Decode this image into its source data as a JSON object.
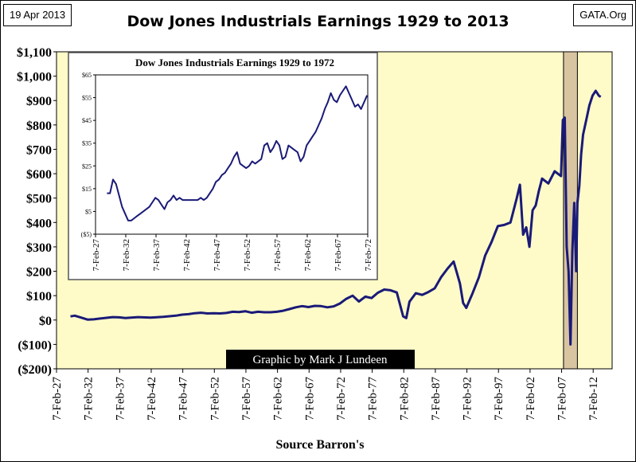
{
  "header": {
    "date": "19 Apr 2013",
    "title": "Dow Jones Industrials Earnings 1929 to 2013",
    "site": "GATA.Org"
  },
  "credit": "Graphic by Mark J Lundeen",
  "colors": {
    "plot_background": "#FFFBC8",
    "series_line": "#1A1A78",
    "recession_band": "#D9C4A2"
  },
  "chart_data": [
    {
      "type": "line",
      "title": "Dow Jones Industrials Earnings 1929 to 2013",
      "xlabel": "Source Barron's",
      "ylabel": "",
      "xlim": [
        1927.1,
        2015.1
      ],
      "ylim": [
        -200,
        1100
      ],
      "grid": false,
      "y_ticks": [
        1100,
        1000,
        900,
        800,
        700,
        600,
        500,
        400,
        300,
        200,
        100,
        0,
        -100,
        -200
      ],
      "y_tick_labels": [
        "$1,100",
        "$1,000",
        "$900",
        "$800",
        "$700",
        "$600",
        "$500",
        "$400",
        "$300",
        "$200",
        "$100",
        "$0",
        "($100)",
        "($200)"
      ],
      "x_ticks": [
        1927.1,
        1932.1,
        1937.1,
        1942.1,
        1947.1,
        1952.1,
        1957.1,
        1962.1,
        1967.1,
        1972.1,
        1977.1,
        1982.1,
        1987.1,
        1992.1,
        1997.1,
        2002.1,
        2007.1,
        2012.1
      ],
      "x_tick_labels": [
        "7-Feb-27",
        "7-Feb-32",
        "7-Feb-37",
        "7-Feb-42",
        "7-Feb-47",
        "7-Feb-52",
        "7-Feb-57",
        "7-Feb-62",
        "7-Feb-67",
        "7-Feb-72",
        "7-Feb-77",
        "7-Feb-82",
        "7-Feb-87",
        "7-Feb-92",
        "7-Feb-97",
        "7-Feb-02",
        "7-Feb-07",
        "7-Feb-12"
      ],
      "shaded_region": {
        "x": [
          2007.4,
          2009.6
        ]
      },
      "series": [
        {
          "x": [
            1929.3,
            1930,
            1931,
            1932,
            1933,
            1934,
            1935,
            1936,
            1937,
            1938,
            1940,
            1942,
            1944,
            1946,
            1947,
            1948,
            1949,
            1950,
            1951,
            1952,
            1953,
            1954,
            1955,
            1956,
            1957,
            1958,
            1959,
            1960,
            1961,
            1962,
            1963,
            1964,
            1965,
            1966,
            1967,
            1968,
            1969,
            1970,
            1971,
            1972,
            1973,
            1974,
            1975,
            1976,
            1977,
            1978,
            1979,
            1980,
            1981,
            1982,
            1982.5,
            1983,
            1984,
            1985,
            1986,
            1987,
            1988,
            1989,
            1990,
            1991,
            1991.5,
            1992,
            1993,
            1994,
            1995,
            1996,
            1997,
            1998,
            1999,
            2000,
            2000.5,
            2001,
            2001.5,
            2002,
            2002.5,
            2003,
            2003.5,
            2004,
            2005,
            2006,
            2007,
            2007.3,
            2007.6,
            2007.9,
            2008.2,
            2008.5,
            2008.8,
            2009.1,
            2009.4,
            2009.6,
            2009.9,
            2010.2,
            2010.5,
            2011,
            2011.5,
            2012,
            2012.5,
            2013,
            2013.3
          ],
          "y": [
            15,
            18,
            10,
            2,
            3,
            6,
            9,
            12,
            11,
            8,
            12,
            10,
            13,
            18,
            22,
            24,
            28,
            30,
            27,
            28,
            27,
            29,
            34,
            33,
            36,
            30,
            34,
            32,
            32,
            34,
            38,
            45,
            52,
            57,
            53,
            58,
            57,
            52,
            56,
            68,
            87,
            100,
            76,
            96,
            90,
            112,
            125,
            122,
            113,
            15,
            8,
            75,
            110,
            103,
            115,
            130,
            175,
            210,
            240,
            150,
            70,
            50,
            110,
            175,
            265,
            320,
            385,
            390,
            400,
            500,
            555,
            350,
            380,
            300,
            450,
            470,
            530,
            580,
            560,
            610,
            590,
            820,
            830,
            300,
            200,
            -100,
            280,
            480,
            200,
            480,
            550,
            680,
            760,
            820,
            880,
            920,
            940,
            920,
            915
          ]
        }
      ]
    },
    {
      "type": "line",
      "title": "Dow Jones Industrials Earnings 1929 to 1972",
      "xlabel": "",
      "ylabel": "",
      "xlim": [
        1927.1,
        1972.1
      ],
      "ylim": [
        -5,
        65
      ],
      "grid": false,
      "y_ticks": [
        65,
        55,
        45,
        35,
        25,
        15,
        5,
        -5
      ],
      "y_tick_labels": [
        "$65",
        "$55",
        "$45",
        "$35",
        "$25",
        "$15",
        "$5",
        "($5)"
      ],
      "x_ticks": [
        1927.1,
        1932.1,
        1937.1,
        1942.1,
        1947.1,
        1952.1,
        1957.1,
        1962.1,
        1967.1,
        1972.1
      ],
      "x_tick_labels": [
        "7-Feb-27",
        "7-Feb-32",
        "7-Feb-37",
        "7-Feb-42",
        "7-Feb-47",
        "7-Feb-52",
        "7-Feb-57",
        "7-Feb-62",
        "7-Feb-67",
        "7-Feb-72"
      ],
      "series": [
        {
          "x": [
            1929.0,
            1929.5,
            1930.0,
            1930.5,
            1931.0,
            1931.5,
            1932.0,
            1932.5,
            1933.0,
            1933.5,
            1934.0,
            1934.5,
            1935.0,
            1935.5,
            1936.0,
            1936.5,
            1937.0,
            1937.5,
            1938.0,
            1938.5,
            1939.0,
            1939.5,
            1940.0,
            1940.5,
            1941.0,
            1941.5,
            1942.0,
            1942.5,
            1943.0,
            1943.5,
            1944.0,
            1944.5,
            1945.0,
            1945.5,
            1946.0,
            1946.5,
            1947.0,
            1947.5,
            1948.0,
            1948.5,
            1949.0,
            1949.5,
            1950.0,
            1950.5,
            1951.0,
            1951.5,
            1952.0,
            1952.5,
            1953.0,
            1953.5,
            1954.0,
            1954.5,
            1955.0,
            1955.5,
            1956.0,
            1956.5,
            1957.0,
            1957.5,
            1958.0,
            1958.5,
            1959.0,
            1959.5,
            1960.0,
            1960.5,
            1961.0,
            1961.5,
            1962.0,
            1962.5,
            1963.0,
            1963.5,
            1964.0,
            1964.5,
            1965.0,
            1965.5,
            1966.0,
            1966.5,
            1967.0,
            1967.5,
            1968.0,
            1968.5,
            1969.0,
            1969.5,
            1970.0,
            1970.5,
            1971.0,
            1971.5,
            1972.0
          ],
          "y": [
            13,
            13,
            19,
            17,
            12,
            7,
            4,
            1,
            1,
            2,
            3,
            4,
            5,
            6,
            7,
            9,
            11,
            10,
            8,
            6,
            9,
            10,
            12,
            10,
            11,
            10,
            10,
            10,
            10,
            10,
            10,
            11,
            10,
            11,
            13,
            15,
            18,
            19,
            21,
            22,
            24,
            26,
            29,
            31,
            26,
            25,
            24,
            25,
            27,
            26,
            27,
            28,
            34,
            35,
            31,
            33,
            36,
            34,
            28,
            29,
            34,
            33,
            32,
            31,
            27,
            29,
            34,
            36,
            38,
            40,
            43,
            46,
            50,
            53,
            57,
            54,
            53,
            56,
            58,
            60,
            57,
            54,
            51,
            52,
            50,
            53,
            56
          ]
        }
      ]
    }
  ]
}
